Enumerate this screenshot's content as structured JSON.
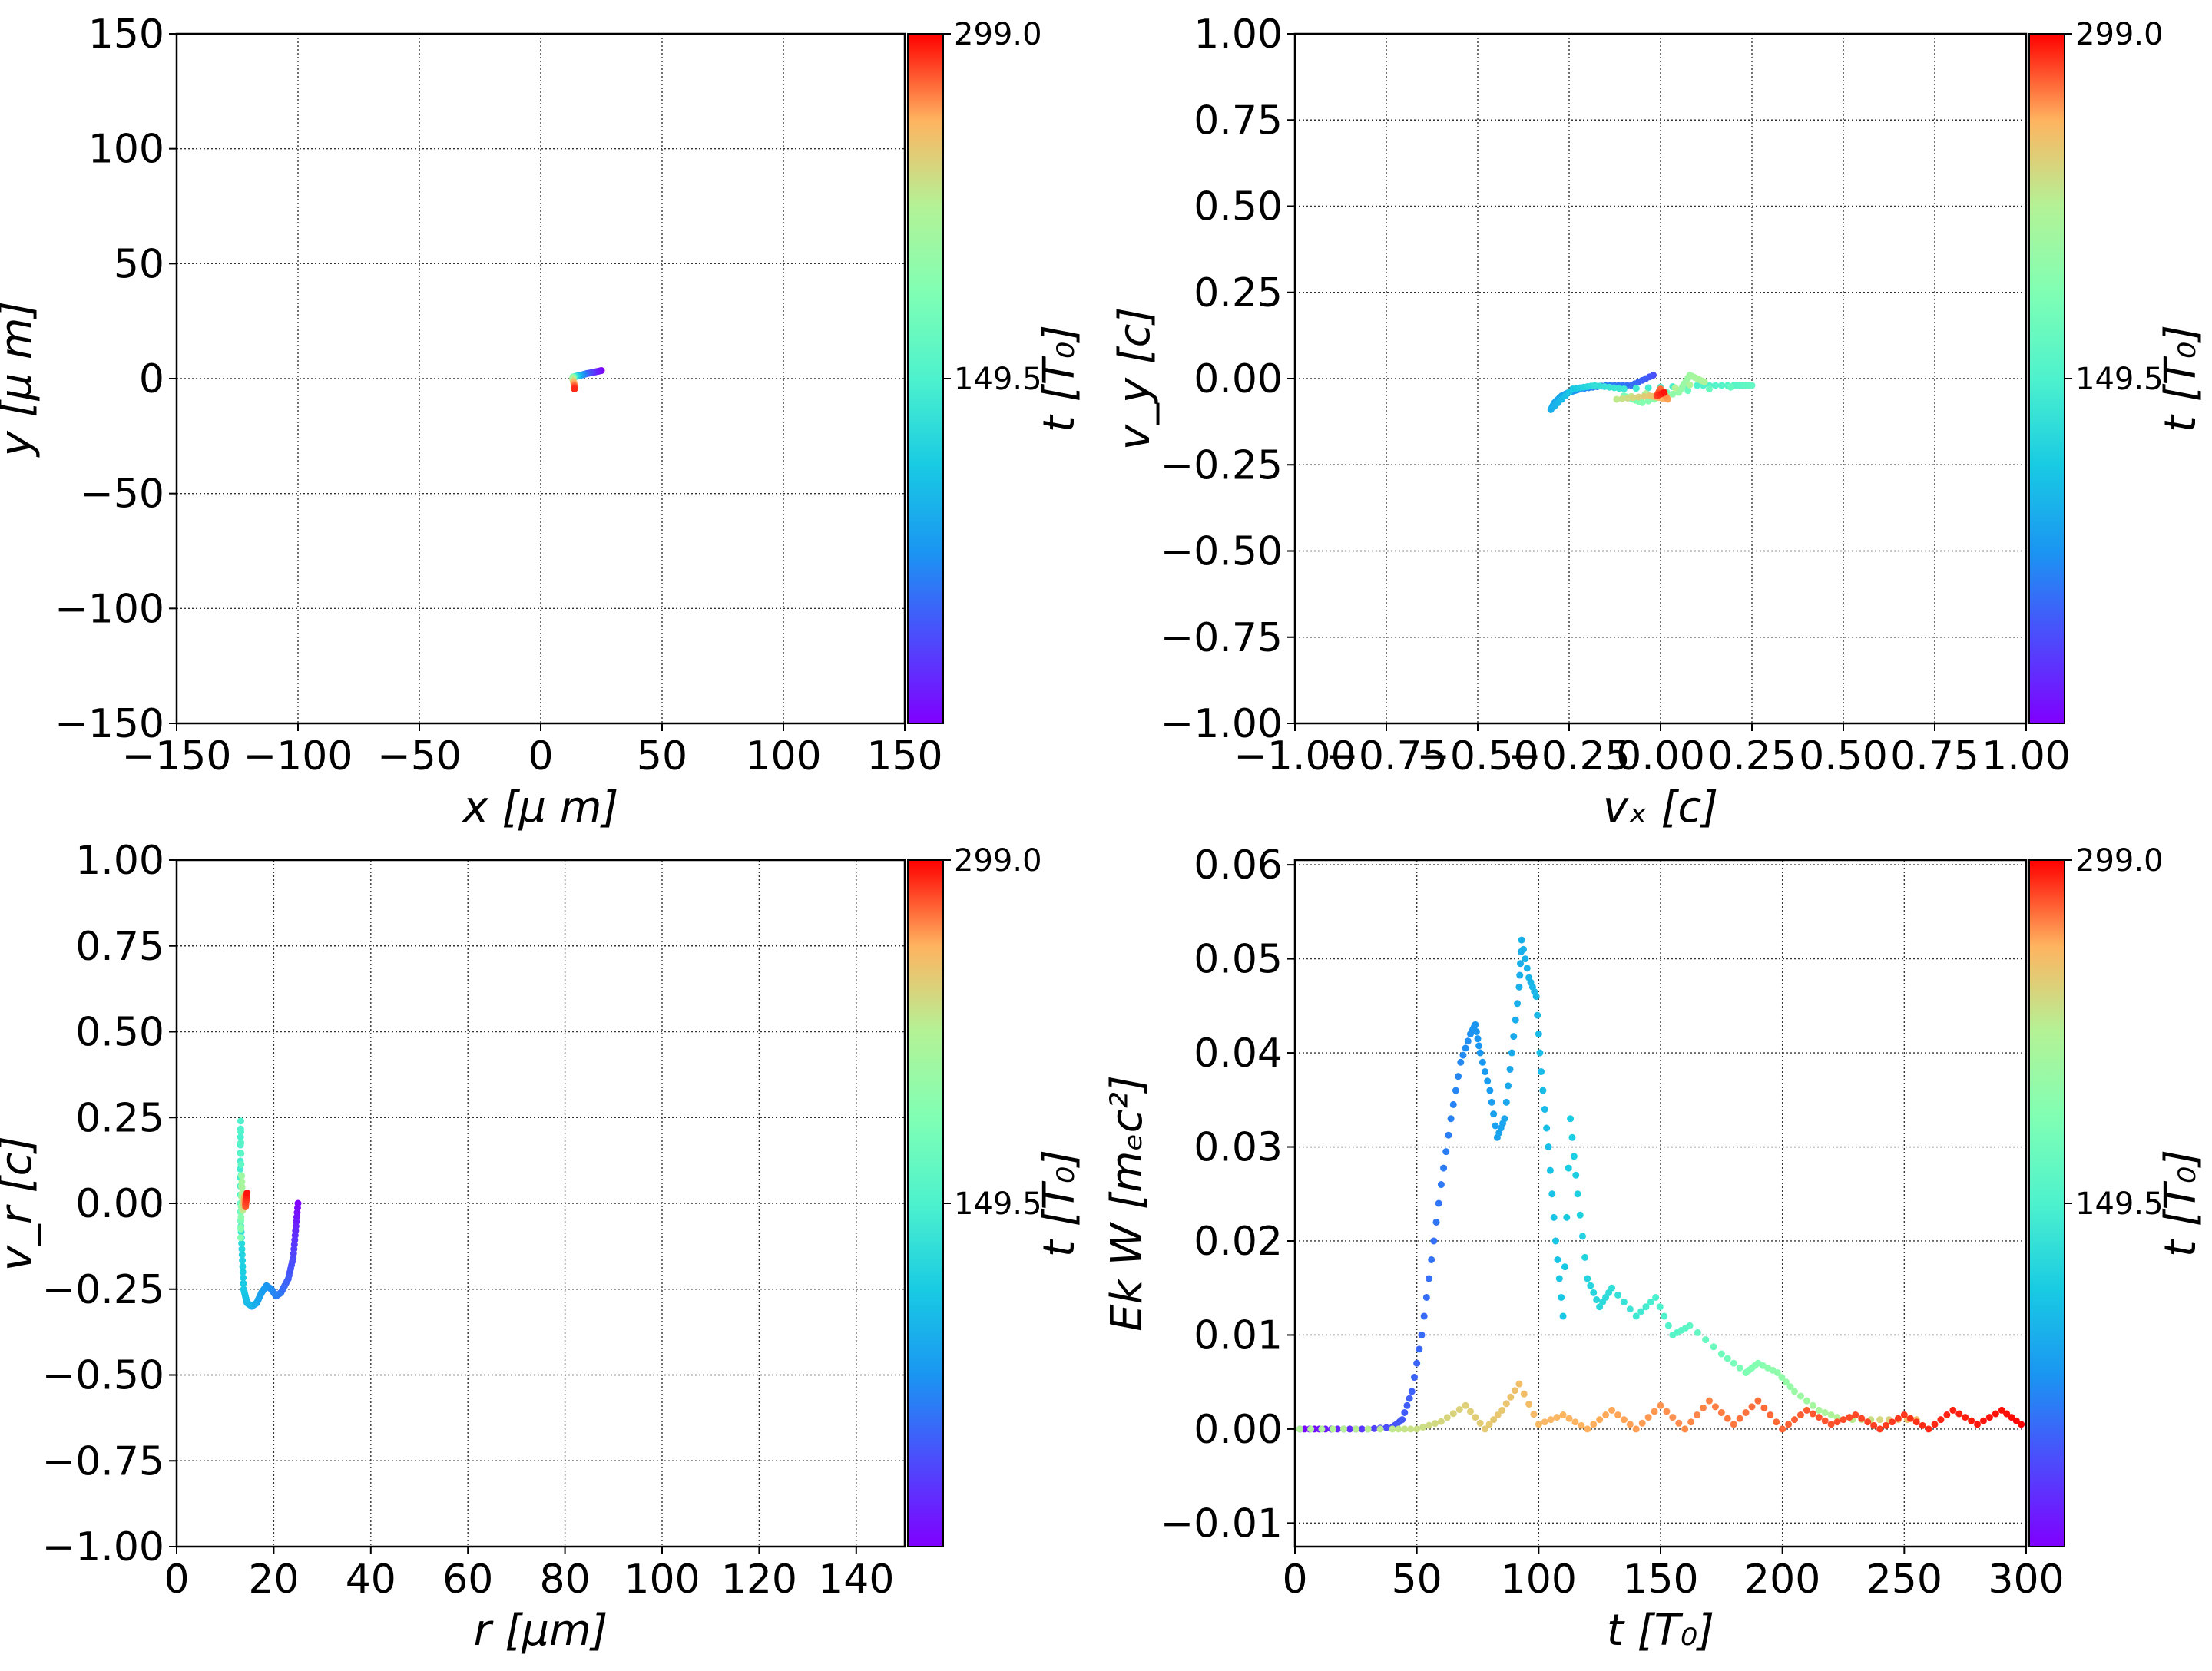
{
  "colorbar": {
    "tick_labels": [
      "299.0",
      "149.5"
    ],
    "range": [
      0,
      299
    ],
    "colormap": "rainbow",
    "label": "t [T₀]"
  },
  "chart_data": [
    {
      "type": "scatter",
      "xlabel": "x  [μ m]",
      "ylabel": "y  [μ m]",
      "xlim": [
        -150,
        150
      ],
      "ylim": [
        -150,
        150
      ],
      "xticks": [
        -150,
        -100,
        -50,
        0,
        50,
        100,
        150
      ],
      "yticks": [
        -150,
        -100,
        -50,
        0,
        50,
        100,
        150
      ],
      "xtick_labels": [
        "−150",
        "−100",
        "−50",
        "0",
        "50",
        "100",
        "150"
      ],
      "ytick_labels": [
        "−150",
        "−100",
        "−50",
        "0",
        "50",
        "100",
        "150"
      ],
      "grid": true,
      "colorbar_label": "t [T₀]",
      "points": [
        [
          25,
          3.5,
          0
        ],
        [
          22,
          2.8,
          20
        ],
        [
          19,
          2.2,
          45
        ],
        [
          17,
          1.6,
          70
        ],
        [
          15.5,
          1.2,
          95
        ],
        [
          14.5,
          1,
          120
        ],
        [
          13.6,
          0.8,
          150
        ],
        [
          13.3,
          0.6,
          175
        ],
        [
          13.2,
          0.3,
          200
        ],
        [
          13.3,
          -0.6,
          225
        ],
        [
          13.6,
          -1.5,
          250
        ],
        [
          13.8,
          -2.8,
          270
        ],
        [
          13.9,
          -4.5,
          290
        ]
      ]
    },
    {
      "type": "scatter",
      "xlabel": "vₓ [c]",
      "ylabel": "v_y [c]",
      "xlim": [
        -1,
        1
      ],
      "ylim": [
        -1,
        1
      ],
      "xticks": [
        -1,
        -0.75,
        -0.5,
        -0.25,
        0,
        0.25,
        0.5,
        0.75,
        1
      ],
      "yticks": [
        -1,
        -0.75,
        -0.5,
        -0.25,
        0,
        0.25,
        0.5,
        0.75,
        1
      ],
      "xtick_labels": [
        "−1.00",
        "−0.75",
        "−0.50",
        "−0.25",
        "0.00",
        "0.25",
        "0.50",
        "0.75",
        "1.00"
      ],
      "ytick_labels": [
        "−1.00",
        "−0.75",
        "−0.50",
        "−0.25",
        "0.00",
        "0.25",
        "0.50",
        "0.75",
        "1.00"
      ],
      "grid": true,
      "colorbar_label": "t [T₀]",
      "points": [
        [
          -0.02,
          0.01,
          40
        ],
        [
          -0.08,
          -0.02,
          55
        ],
        [
          -0.15,
          -0.02,
          62
        ],
        [
          -0.22,
          -0.03,
          70
        ],
        [
          -0.25,
          -0.04,
          78
        ],
        [
          -0.27,
          -0.05,
          84
        ],
        [
          -0.29,
          -0.07,
          88
        ],
        [
          -0.3,
          -0.09,
          92
        ],
        [
          -0.24,
          -0.03,
          110
        ],
        [
          -0.18,
          -0.02,
          130
        ],
        [
          -0.1,
          -0.03,
          140
        ],
        [
          0.1,
          -0.02,
          150
        ],
        [
          0.2,
          -0.02,
          158
        ],
        [
          0.25,
          -0.02,
          165
        ],
        [
          -0.1,
          -0.05,
          180
        ],
        [
          -0.05,
          -0.07,
          190
        ],
        [
          0.05,
          -0.04,
          200
        ],
        [
          0.08,
          0.01,
          210
        ],
        [
          0.12,
          -0.01,
          220
        ],
        [
          -0.12,
          -0.06,
          230
        ],
        [
          -0.03,
          -0.05,
          250
        ],
        [
          0.02,
          -0.06,
          265
        ],
        [
          0,
          -0.03,
          275
        ],
        [
          -0.01,
          -0.05,
          285
        ],
        [
          0.01,
          -0.04,
          295
        ]
      ]
    },
    {
      "type": "scatter",
      "xlabel": "r [μm]",
      "ylabel": "v_r [c]",
      "xlim": [
        0,
        150
      ],
      "ylim": [
        -1,
        1
      ],
      "xticks": [
        0,
        20,
        40,
        60,
        80,
        100,
        120,
        140
      ],
      "yticks": [
        -1,
        -0.75,
        -0.5,
        -0.25,
        0,
        0.25,
        0.5,
        0.75,
        1
      ],
      "xtick_labels": [
        "0",
        "20",
        "40",
        "60",
        "80",
        "100",
        "120",
        "140"
      ],
      "ytick_labels": [
        "−1.00",
        "−0.75",
        "−0.50",
        "−0.25",
        "0.00",
        "0.25",
        "0.50",
        "0.75",
        "1.00"
      ],
      "grid": true,
      "colorbar_label": "t [T₀]",
      "points": [
        [
          25,
          0,
          0
        ],
        [
          24.5,
          -0.08,
          20
        ],
        [
          24,
          -0.16,
          35
        ],
        [
          23,
          -0.22,
          45
        ],
        [
          21.5,
          -0.26,
          55
        ],
        [
          20.5,
          -0.27,
          62
        ],
        [
          19.5,
          -0.25,
          68
        ],
        [
          18.5,
          -0.24,
          74
        ],
        [
          17.5,
          -0.26,
          80
        ],
        [
          16.5,
          -0.29,
          86
        ],
        [
          15.5,
          -0.3,
          92
        ],
        [
          14.5,
          -0.29,
          100
        ],
        [
          13.8,
          -0.25,
          110
        ],
        [
          13.5,
          -0.15,
          120
        ],
        [
          13.2,
          -0.05,
          135
        ],
        [
          13.1,
          0.1,
          145
        ],
        [
          13.2,
          0.24,
          150
        ],
        [
          13.3,
          0.05,
          170
        ],
        [
          13.2,
          -0.1,
          190
        ],
        [
          13.4,
          0.08,
          210
        ],
        [
          13.6,
          -0.02,
          230
        ],
        [
          14,
          0.02,
          260
        ],
        [
          14.2,
          -0.01,
          280
        ],
        [
          14.5,
          0.03,
          295
        ]
      ]
    },
    {
      "type": "scatter",
      "xlabel": "t [T₀]",
      "ylabel": "Ek W [mₑc²]",
      "xlim": [
        0,
        300
      ],
      "ylim": [
        -0.0125,
        0.0605
      ],
      "xticks": [
        0,
        50,
        100,
        150,
        200,
        250,
        300
      ],
      "yticks": [
        -0.01,
        0,
        0.01,
        0.02,
        0.03,
        0.04,
        0.05,
        0.06
      ],
      "xtick_labels": [
        "0",
        "50",
        "100",
        "150",
        "200",
        "250",
        "300"
      ],
      "ytick_labels": [
        "−0.01",
        "0.00",
        "0.01",
        "0.02",
        "0.03",
        "0.04",
        "0.05",
        "0.06"
      ],
      "grid": true,
      "colorbar_label": "t [T₀]",
      "series": [
        {
          "points": [
            [
              2,
              0,
              2
            ],
            [
              10,
              0,
              10
            ],
            [
              20,
              0,
              20
            ],
            [
              30,
              0,
              30
            ],
            [
              40,
              0.0002,
              40
            ],
            [
              44,
              0.001,
              44
            ],
            [
              48,
              0.004,
              48
            ],
            [
              52,
              0.01,
              52
            ],
            [
              56,
              0.018,
              56
            ],
            [
              60,
              0.026,
              60
            ],
            [
              64,
              0.033,
              64
            ],
            [
              68,
              0.039,
              68
            ],
            [
              72,
              0.042,
              72
            ],
            [
              74,
              0.043,
              74
            ],
            [
              76,
              0.04,
              76
            ],
            [
              80,
              0.036,
              80
            ],
            [
              83,
              0.031,
              83
            ],
            [
              86,
              0.033,
              86
            ],
            [
              89,
              0.04,
              89
            ],
            [
              92,
              0.047,
              92
            ],
            [
              93,
              0.052,
              93
            ],
            [
              96,
              0.048,
              96
            ],
            [
              99,
              0.046,
              99
            ],
            [
              101,
              0.038,
              101
            ],
            [
              104,
              0.03,
              104
            ],
            [
              107,
              0.02,
              107
            ],
            [
              110,
              0.012,
              110
            ],
            [
              113,
              0.033,
              113
            ],
            [
              116,
              0.025,
              116
            ],
            [
              120,
              0.016,
              120
            ],
            [
              125,
              0.013,
              125
            ],
            [
              130,
              0.015,
              130
            ],
            [
              140,
              0.012,
              140
            ],
            [
              148,
              0.014,
              148
            ],
            [
              155,
              0.01,
              155
            ],
            [
              162,
              0.011,
              162
            ],
            [
              175,
              0.008,
              175
            ],
            [
              185,
              0.006,
              185
            ],
            [
              190,
              0.007,
              190
            ],
            [
              198,
              0.006,
              198
            ],
            [
              205,
              0.004,
              205
            ],
            [
              215,
              0.002,
              215
            ],
            [
              225,
              0.001,
              225
            ],
            [
              240,
              0.001,
              240
            ],
            [
              255,
              0.001,
              255
            ]
          ]
        },
        {
          "points": [
            [
              2,
              0,
              220
            ],
            [
              20,
              0,
              225
            ],
            [
              40,
              0,
              230
            ],
            [
              50,
              0,
              235
            ],
            [
              60,
              0.0008,
              240
            ],
            [
              70,
              0.0025,
              245
            ],
            [
              78,
              0,
              248
            ],
            [
              85,
              0.002,
              250
            ],
            [
              92,
              0.0048,
              255
            ],
            [
              100,
              0.0005,
              258
            ],
            [
              110,
              0.0015,
              260
            ],
            [
              120,
              0,
              262
            ],
            [
              130,
              0.002,
              264
            ],
            [
              140,
              0,
              266
            ],
            [
              150,
              0.0025,
              268
            ],
            [
              160,
              0,
              270
            ],
            [
              170,
              0.003,
              272
            ],
            [
              180,
              0.0005,
              274
            ],
            [
              190,
              0.003,
              276
            ],
            [
              200,
              0,
              278
            ],
            [
              210,
              0.002,
              280
            ],
            [
              220,
              0.0005,
              282
            ],
            [
              230,
              0.0015,
              284
            ],
            [
              240,
              0,
              286
            ],
            [
              250,
              0.0015,
              288
            ],
            [
              260,
              0,
              290
            ],
            [
              270,
              0.002,
              292
            ],
            [
              280,
              0.0005,
              294
            ],
            [
              290,
              0.002,
              296
            ],
            [
              298,
              0.0005,
              298
            ]
          ]
        }
      ]
    }
  ]
}
